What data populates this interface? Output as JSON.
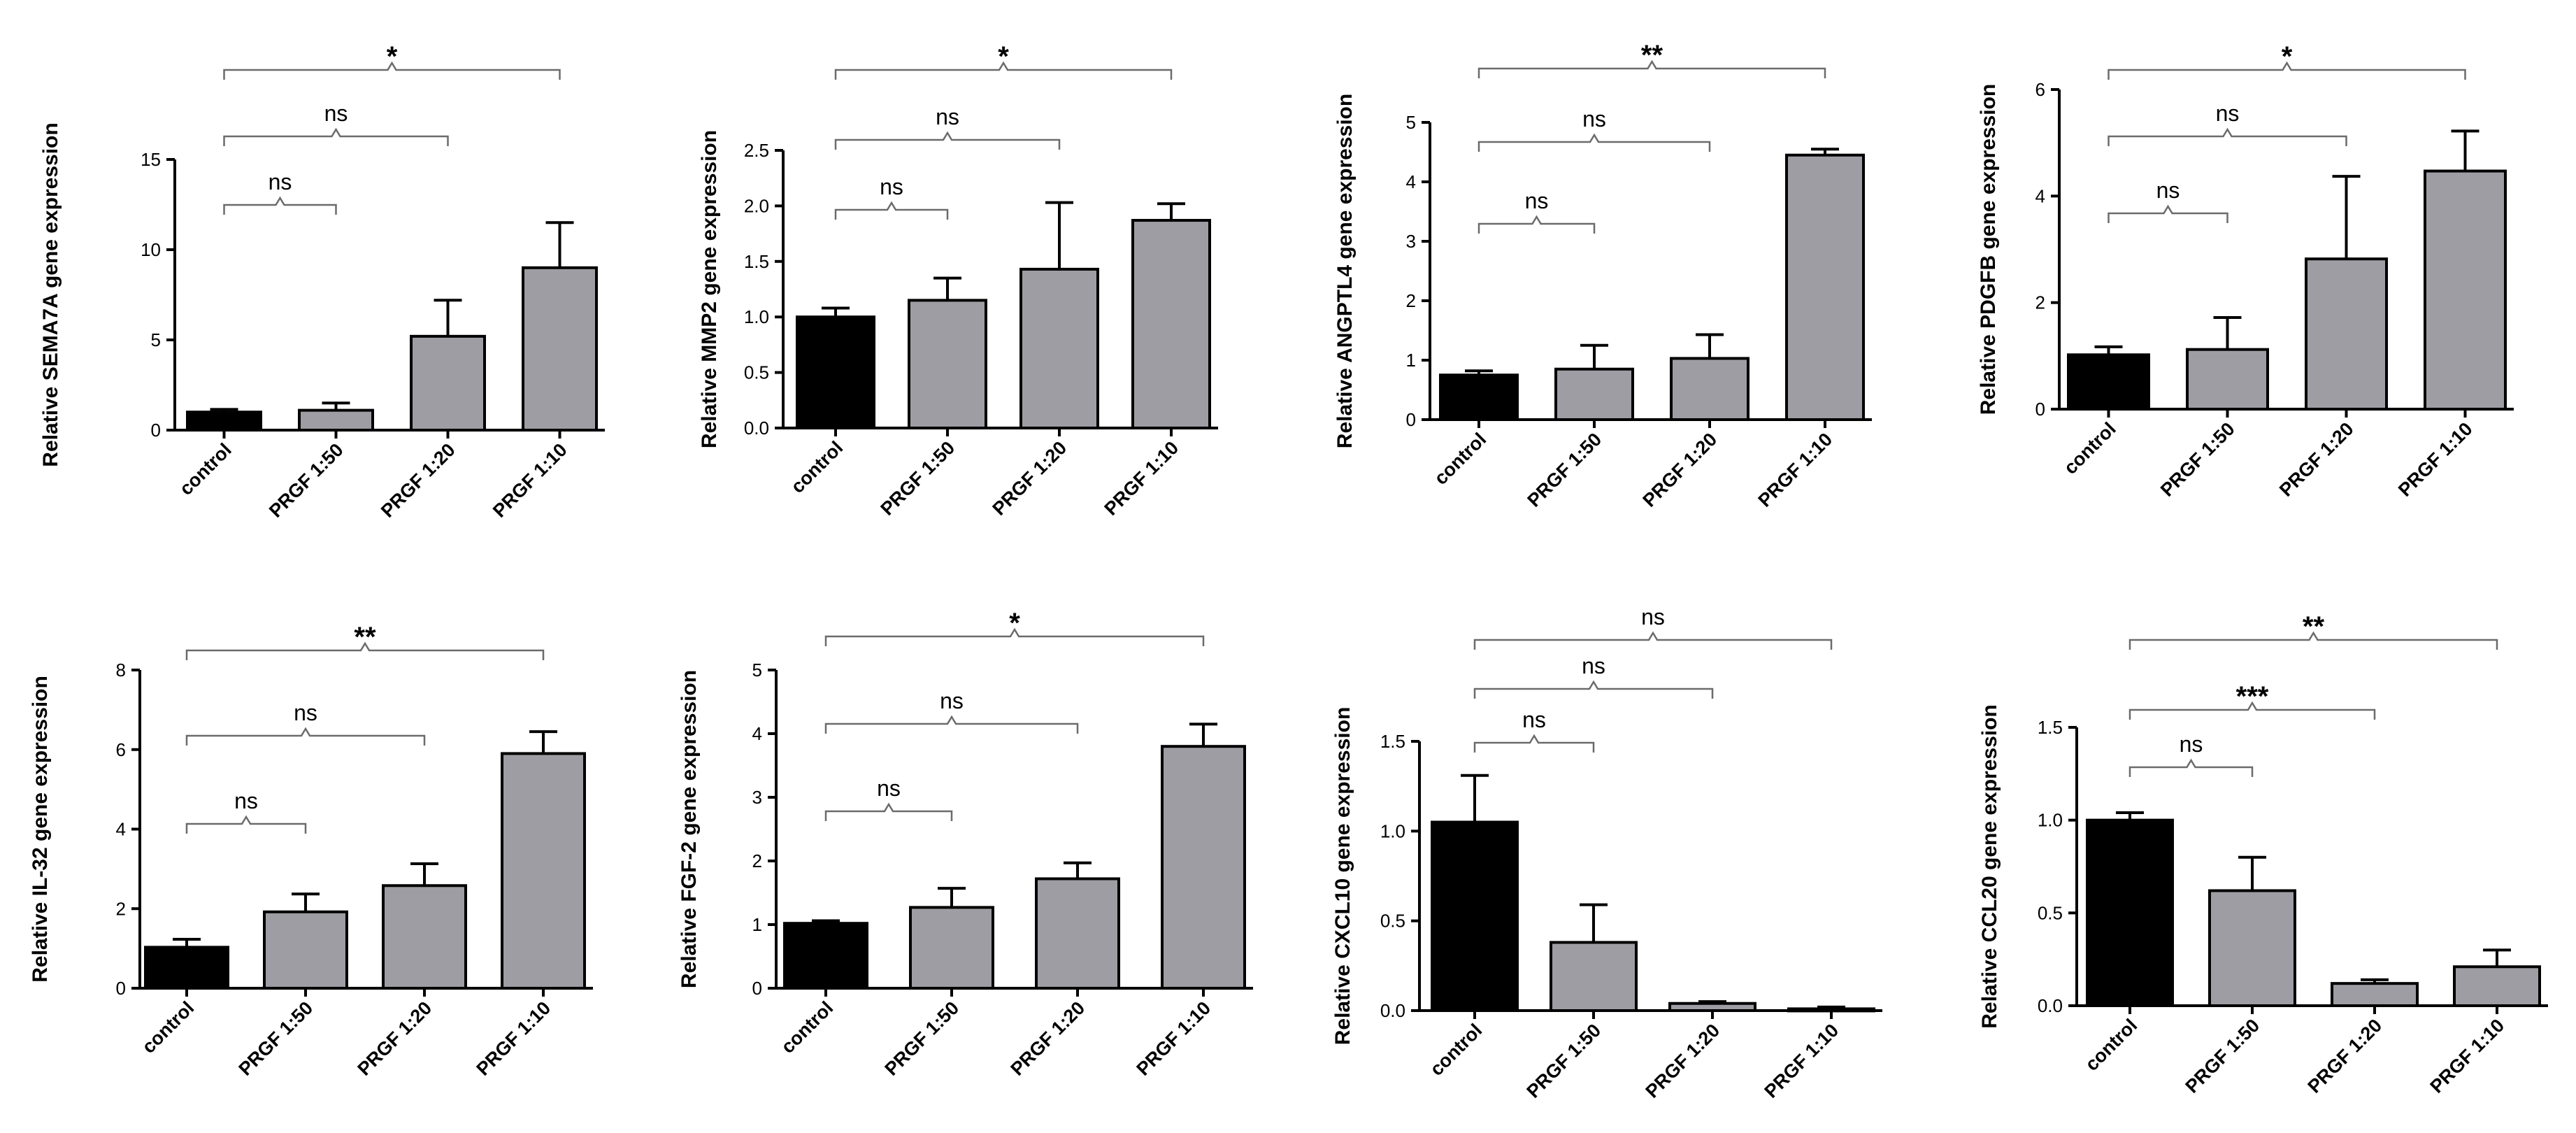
{
  "chart_data": [
    {
      "type": "bar",
      "ylabel": "Relative SEMA7A gene expression",
      "categories": [
        "control",
        "PRGF 1:50",
        "PRGF 1:20",
        "PRGF 1:10"
      ],
      "values": [
        1.0,
        1.1,
        5.2,
        9.0
      ],
      "errors": [
        0.15,
        0.4,
        2.0,
        2.5
      ],
      "bar_colors": [
        "#000000",
        "#9d9da3",
        "#9d9da3",
        "#9d9da3"
      ],
      "ylim": [
        0,
        15
      ],
      "yticks": [
        0,
        5,
        10,
        15
      ],
      "ytick_labels": [
        "0",
        "5",
        "10",
        "15"
      ],
      "significance": [
        {
          "from": 0,
          "to": 1,
          "label": "ns"
        },
        {
          "from": 0,
          "to": 2,
          "label": "ns"
        },
        {
          "from": 0,
          "to": 3,
          "label": "*"
        }
      ]
    },
    {
      "type": "bar",
      "ylabel": "Relative MMP2 gene expression",
      "categories": [
        "control",
        "PRGF 1:50",
        "PRGF 1:20",
        "PRGF 1:10"
      ],
      "values": [
        1.0,
        1.15,
        1.43,
        1.87
      ],
      "errors": [
        0.08,
        0.2,
        0.6,
        0.15
      ],
      "bar_colors": [
        "#000000",
        "#9d9da3",
        "#9d9da3",
        "#9d9da3"
      ],
      "ylim": [
        0,
        2.5
      ],
      "yticks": [
        0,
        0.5,
        1,
        1.5,
        2,
        2.5
      ],
      "ytick_labels": [
        "0.0",
        "0.5",
        "1.0",
        "1.5",
        "2.0",
        "2.5"
      ],
      "significance": [
        {
          "from": 0,
          "to": 1,
          "label": "ns"
        },
        {
          "from": 0,
          "to": 2,
          "label": "ns"
        },
        {
          "from": 0,
          "to": 3,
          "label": "*"
        }
      ]
    },
    {
      "type": "bar",
      "ylabel": "Relative ANGPTL4 gene expression",
      "categories": [
        "control",
        "PRGF 1:50",
        "PRGF 1:20",
        "PRGF 1:10"
      ],
      "values": [
        0.75,
        0.85,
        1.03,
        4.45
      ],
      "errors": [
        0.07,
        0.4,
        0.4,
        0.1
      ],
      "bar_colors": [
        "#000000",
        "#9d9da3",
        "#9d9da3",
        "#9d9da3"
      ],
      "ylim": [
        0,
        5
      ],
      "yticks": [
        0,
        1,
        2,
        3,
        4,
        5
      ],
      "ytick_labels": [
        "0",
        "1",
        "2",
        "3",
        "4",
        "5"
      ],
      "significance": [
        {
          "from": 0,
          "to": 1,
          "label": "ns"
        },
        {
          "from": 0,
          "to": 2,
          "label": "ns"
        },
        {
          "from": 0,
          "to": 3,
          "label": "**"
        }
      ]
    },
    {
      "type": "bar",
      "ylabel": "Relative PDGFB gene expression",
      "categories": [
        "control",
        "PRGF 1:50",
        "PRGF 1:20",
        "PRGF 1:10"
      ],
      "values": [
        1.02,
        1.12,
        2.82,
        4.47
      ],
      "errors": [
        0.15,
        0.6,
        1.55,
        0.75
      ],
      "bar_colors": [
        "#000000",
        "#9d9da3",
        "#9d9da3",
        "#9d9da3"
      ],
      "ylim": [
        0,
        6
      ],
      "yticks": [
        0,
        2,
        4,
        6
      ],
      "ytick_labels": [
        "0",
        "2",
        "4",
        "6"
      ],
      "significance": [
        {
          "from": 0,
          "to": 1,
          "label": "ns"
        },
        {
          "from": 0,
          "to": 2,
          "label": "ns"
        },
        {
          "from": 0,
          "to": 3,
          "label": "*"
        }
      ]
    },
    {
      "type": "bar",
      "ylabel": "Relative IL-32 gene expression",
      "categories": [
        "control",
        "PRGF 1:50",
        "PRGF 1:20",
        "PRGF 1:10"
      ],
      "values": [
        1.03,
        1.92,
        2.58,
        5.9
      ],
      "errors": [
        0.2,
        0.45,
        0.55,
        0.55
      ],
      "bar_colors": [
        "#000000",
        "#9d9da3",
        "#9d9da3",
        "#9d9da3"
      ],
      "ylim": [
        0,
        8
      ],
      "yticks": [
        0,
        2,
        4,
        6,
        8
      ],
      "ytick_labels": [
        "0",
        "2",
        "4",
        "6",
        "8"
      ],
      "significance": [
        {
          "from": 0,
          "to": 1,
          "label": "ns"
        },
        {
          "from": 0,
          "to": 2,
          "label": "ns"
        },
        {
          "from": 0,
          "to": 3,
          "label": "**"
        }
      ]
    },
    {
      "type": "bar",
      "ylabel": "Relative FGF-2 gene expression",
      "categories": [
        "control",
        "PRGF 1:50",
        "PRGF 1:20",
        "PRGF 1:10"
      ],
      "values": [
        1.02,
        1.27,
        1.72,
        3.8
      ],
      "errors": [
        0.04,
        0.3,
        0.25,
        0.35
      ],
      "bar_colors": [
        "#000000",
        "#9d9da3",
        "#9d9da3",
        "#9d9da3"
      ],
      "ylim": [
        0,
        5
      ],
      "yticks": [
        0,
        1,
        2,
        3,
        4,
        5
      ],
      "ytick_labels": [
        "0",
        "1",
        "2",
        "3",
        "4",
        "5"
      ],
      "significance": [
        {
          "from": 0,
          "to": 1,
          "label": "ns"
        },
        {
          "from": 0,
          "to": 2,
          "label": "ns"
        },
        {
          "from": 0,
          "to": 3,
          "label": "*"
        }
      ]
    },
    {
      "type": "bar",
      "ylabel": "Relative CXCL10 gene expression",
      "categories": [
        "control",
        "PRGF 1:50",
        "PRGF 1:20",
        "PRGF 1:10"
      ],
      "values": [
        1.05,
        0.38,
        0.04,
        0.01
      ],
      "errors": [
        0.26,
        0.21,
        0.01,
        0.01
      ],
      "bar_colors": [
        "#000000",
        "#9d9da3",
        "#9d9da3",
        "#9d9da3"
      ],
      "ylim": [
        0,
        1.5
      ],
      "yticks": [
        0,
        0.5,
        1,
        1.5
      ],
      "ytick_labels": [
        "0.0",
        "0.5",
        "1.0",
        "1.5"
      ],
      "significance": [
        {
          "from": 0,
          "to": 1,
          "label": "ns"
        },
        {
          "from": 0,
          "to": 2,
          "label": "ns"
        },
        {
          "from": 0,
          "to": 3,
          "label": "ns"
        }
      ]
    },
    {
      "type": "bar",
      "ylabel": "Relative CCL20 gene expression",
      "categories": [
        "control",
        "PRGF 1:50",
        "PRGF 1:20",
        "PRGF 1:10"
      ],
      "values": [
        1.0,
        0.62,
        0.12,
        0.21
      ],
      "errors": [
        0.04,
        0.18,
        0.02,
        0.09
      ],
      "bar_colors": [
        "#000000",
        "#9d9da3",
        "#9d9da3",
        "#9d9da3"
      ],
      "ylim": [
        0,
        1.5
      ],
      "yticks": [
        0,
        0.5,
        1,
        1.5
      ],
      "ytick_labels": [
        "0.0",
        "0.5",
        "1.0",
        "1.5"
      ],
      "significance": [
        {
          "from": 0,
          "to": 1,
          "label": "ns"
        },
        {
          "from": 0,
          "to": 2,
          "label": "***"
        },
        {
          "from": 0,
          "to": 3,
          "label": "**"
        }
      ]
    }
  ]
}
